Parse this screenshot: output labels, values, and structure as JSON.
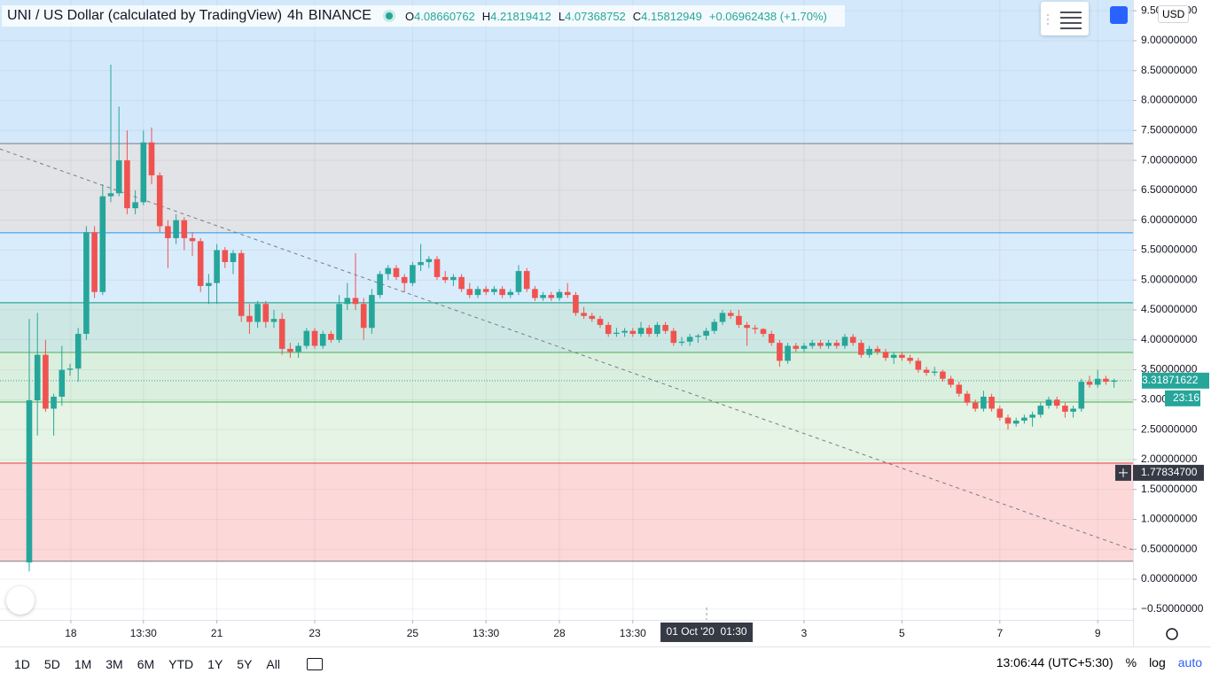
{
  "header": {
    "title": "UNI / US Dollar (calculated by TradingView)",
    "interval": "4h",
    "exchange": "BINANCE",
    "open_label": "O",
    "open": "4.08660762",
    "high_label": "H",
    "high": "4.21819412",
    "low_label": "L",
    "low": "4.07368752",
    "close_label": "C",
    "close": "4.15812949",
    "change": "+0.06962438 (+1.70%)"
  },
  "currency": "USD",
  "chart_data": {
    "type": "candlestick",
    "up_color": "#26a69a",
    "down_color": "#ef5350",
    "xlim": [
      -3.587,
      135.326
    ],
    "ylim": [
      -0.68,
      9.68
    ],
    "yticks": [
      {
        "value": 9.5,
        "label": "9.50000000"
      },
      {
        "value": 9,
        "label": "9.00000000"
      },
      {
        "value": 8.5,
        "label": "8.50000000"
      },
      {
        "value": 8,
        "label": "8.00000000"
      },
      {
        "value": 7.5,
        "label": "7.50000000"
      },
      {
        "value": 7,
        "label": "7.00000000"
      },
      {
        "value": 6.5,
        "label": "6.50000000"
      },
      {
        "value": 6,
        "label": "6.00000000"
      },
      {
        "value": 5.5,
        "label": "5.50000000"
      },
      {
        "value": 5,
        "label": "5.00000000"
      },
      {
        "value": 4.5,
        "label": "4.50000000"
      },
      {
        "value": 4,
        "label": "4.00000000"
      },
      {
        "value": 3.5,
        "label": "3.50000000"
      },
      {
        "value": 3,
        "label": "3.00000000"
      },
      {
        "value": 2.5,
        "label": "2.50000000"
      },
      {
        "value": 2,
        "label": "2.00000000"
      },
      {
        "value": 1.5,
        "label": "1.50000000"
      },
      {
        "value": 1,
        "label": "1.00000000"
      },
      {
        "value": 0.5,
        "label": "0.50000000"
      },
      {
        "value": 0,
        "label": "0.00000000"
      },
      {
        "value": -0.5,
        "label": "−0.50000000"
      }
    ],
    "xticks": [
      {
        "value": 5.1,
        "label": "18"
      },
      {
        "value": 14,
        "label": "13:30"
      },
      {
        "value": 23,
        "label": "21"
      },
      {
        "value": 35,
        "label": "23"
      },
      {
        "value": 47,
        "label": "25"
      },
      {
        "value": 56,
        "label": "13:30"
      },
      {
        "value": 65,
        "label": "28"
      },
      {
        "value": 74,
        "label": "13:30"
      },
      {
        "value": 95,
        "label": "3"
      },
      {
        "value": 107,
        "label": "5"
      },
      {
        "value": 119,
        "label": "7"
      },
      {
        "value": 131,
        "label": "9"
      }
    ],
    "grid": true,
    "levels": [
      7.28,
      5.79,
      4.62,
      3.79,
      2.96,
      1.94,
      0.3
    ],
    "level_colors": [
      "#787b86",
      "#2196f3",
      "#089981",
      "#4caf50",
      "#4caf50",
      "#f23645",
      "#787b86"
    ],
    "zone_colors": [
      "#d3e9fb",
      "#e2e3e6",
      "#d9ecfb",
      "#cde8e4",
      "#dbefdf",
      "#e5f4e4",
      "#fdd8d9",
      "#ffffff"
    ],
    "trendline": [
      {
        "x": -3.6,
        "y": 7.19
      },
      {
        "x": 135.3,
        "y": 0.49
      }
    ],
    "last_price": 3.31871622,
    "countdown": "23:16",
    "crosshair": {
      "x": {
        "value": 83.05,
        "label": "01 Oct '20  01:30"
      },
      "y": {
        "value": 1.778347,
        "label": "1.77834700"
      }
    },
    "candles": [
      [
        0.28,
        4.35,
        0.13,
        2.99
      ],
      [
        2.99,
        4.45,
        2.4,
        3.75
      ],
      [
        3.75,
        4.0,
        2.8,
        2.85
      ],
      [
        2.85,
        3.1,
        2.4,
        3.05
      ],
      [
        3.05,
        3.9,
        2.9,
        3.5
      ],
      [
        3.5,
        3.6,
        3.4,
        3.52
      ],
      [
        3.52,
        4.2,
        3.3,
        4.1
      ],
      [
        4.1,
        5.9,
        4.0,
        5.8
      ],
      [
        5.8,
        5.9,
        4.7,
        4.8
      ],
      [
        4.8,
        6.6,
        4.75,
        6.4
      ],
      [
        6.4,
        8.6,
        6.3,
        6.45
      ],
      [
        6.45,
        7.9,
        6.4,
        7.0
      ],
      [
        7.0,
        7.5,
        6.1,
        6.2
      ],
      [
        6.2,
        6.5,
        6.1,
        6.3
      ],
      [
        6.3,
        7.5,
        6.25,
        7.3
      ],
      [
        7.3,
        7.55,
        6.6,
        6.75
      ],
      [
        6.75,
        6.8,
        5.8,
        5.9
      ],
      [
        5.9,
        6.0,
        5.2,
        5.7
      ],
      [
        5.7,
        6.1,
        5.6,
        6.0
      ],
      [
        6.0,
        6.05,
        5.5,
        5.7
      ],
      [
        5.7,
        5.8,
        5.4,
        5.65
      ],
      [
        5.65,
        5.7,
        4.8,
        4.9
      ],
      [
        4.9,
        5.1,
        4.6,
        4.95
      ],
      [
        4.95,
        5.6,
        4.6,
        5.5
      ],
      [
        5.5,
        5.55,
        5.2,
        5.3
      ],
      [
        5.3,
        5.5,
        5.1,
        5.45
      ],
      [
        5.45,
        5.5,
        4.3,
        4.4
      ],
      [
        4.4,
        4.6,
        4.1,
        4.3
      ],
      [
        4.3,
        4.65,
        4.2,
        4.6
      ],
      [
        4.6,
        4.65,
        4.2,
        4.3
      ],
      [
        4.3,
        4.5,
        4.2,
        4.35
      ],
      [
        4.35,
        4.45,
        3.75,
        3.85
      ],
      [
        3.85,
        3.95,
        3.7,
        3.8
      ],
      [
        3.8,
        3.95,
        3.7,
        3.9
      ],
      [
        3.9,
        4.2,
        3.85,
        4.15
      ],
      [
        4.15,
        4.2,
        3.85,
        3.9
      ],
      [
        3.9,
        4.15,
        3.85,
        4.1
      ],
      [
        4.1,
        4.15,
        3.95,
        4.0
      ],
      [
        4.0,
        4.75,
        3.95,
        4.6
      ],
      [
        4.6,
        4.95,
        4.5,
        4.7
      ],
      [
        4.7,
        5.45,
        4.5,
        4.6
      ],
      [
        4.6,
        4.7,
        4.0,
        4.2
      ],
      [
        4.2,
        4.85,
        4.1,
        4.75
      ],
      [
        4.75,
        5.15,
        4.7,
        5.1
      ],
      [
        5.1,
        5.25,
        5.0,
        5.2
      ],
      [
        5.2,
        5.25,
        5.0,
        5.05
      ],
      [
        5.05,
        5.1,
        4.8,
        4.95
      ],
      [
        4.95,
        5.3,
        4.9,
        5.25
      ],
      [
        5.25,
        5.6,
        5.15,
        5.3
      ],
      [
        5.3,
        5.4,
        5.2,
        5.35
      ],
      [
        5.35,
        5.4,
        5.0,
        5.05
      ],
      [
        5.05,
        5.15,
        4.95,
        5.0
      ],
      [
        5.0,
        5.1,
        4.9,
        5.05
      ],
      [
        5.05,
        5.1,
        4.8,
        4.85
      ],
      [
        4.85,
        4.95,
        4.7,
        4.75
      ],
      [
        4.75,
        4.9,
        4.7,
        4.85
      ],
      [
        4.85,
        4.9,
        4.75,
        4.8
      ],
      [
        4.8,
        4.9,
        4.75,
        4.85
      ],
      [
        4.85,
        4.9,
        4.7,
        4.75
      ],
      [
        4.75,
        4.85,
        4.7,
        4.8
      ],
      [
        4.8,
        5.25,
        4.75,
        5.15
      ],
      [
        5.15,
        5.2,
        4.8,
        4.85
      ],
      [
        4.85,
        4.9,
        4.65,
        4.7
      ],
      [
        4.7,
        4.8,
        4.65,
        4.75
      ],
      [
        4.75,
        4.8,
        4.65,
        4.7
      ],
      [
        4.7,
        4.85,
        4.65,
        4.8
      ],
      [
        4.8,
        4.95,
        4.7,
        4.75
      ],
      [
        4.75,
        4.8,
        4.4,
        4.45
      ],
      [
        4.45,
        4.55,
        4.35,
        4.4
      ],
      [
        4.4,
        4.45,
        4.3,
        4.35
      ],
      [
        4.35,
        4.4,
        4.2,
        4.25
      ],
      [
        4.25,
        4.3,
        4.05,
        4.1
      ],
      [
        4.1,
        4.2,
        4.05,
        4.12
      ],
      [
        4.12,
        4.2,
        4.05,
        4.15
      ],
      [
        4.15,
        4.2,
        4.05,
        4.1
      ],
      [
        4.1,
        4.3,
        4.05,
        4.2
      ],
      [
        4.2,
        4.25,
        4.05,
        4.1
      ],
      [
        4.1,
        4.3,
        4.05,
        4.25
      ],
      [
        4.25,
        4.3,
        4.1,
        4.15
      ],
      [
        4.15,
        4.2,
        3.9,
        3.95
      ],
      [
        3.95,
        4.05,
        3.9,
        3.97
      ],
      [
        3.97,
        4.1,
        3.9,
        4.05
      ],
      [
        4.05,
        4.1,
        3.95,
        4.07
      ],
      [
        4.07,
        4.2,
        4.0,
        4.15
      ],
      [
        4.15,
        4.35,
        4.1,
        4.3
      ],
      [
        4.3,
        4.5,
        4.25,
        4.45
      ],
      [
        4.45,
        4.5,
        4.35,
        4.4
      ],
      [
        4.4,
        4.5,
        4.2,
        4.25
      ],
      [
        4.25,
        4.3,
        3.9,
        4.2
      ],
      [
        4.2,
        4.25,
        4.1,
        4.18
      ],
      [
        4.18,
        4.2,
        4.05,
        4.1
      ],
      [
        4.1,
        4.15,
        3.9,
        3.95
      ],
      [
        3.95,
        4.0,
        3.55,
        3.65
      ],
      [
        3.65,
        3.95,
        3.6,
        3.9
      ],
      [
        3.9,
        3.95,
        3.8,
        3.85
      ],
      [
        3.85,
        3.95,
        3.8,
        3.9
      ],
      [
        3.9,
        4.0,
        3.85,
        3.95
      ],
      [
        3.95,
        4.0,
        3.85,
        3.9
      ],
      [
        3.9,
        4.0,
        3.85,
        3.95
      ],
      [
        3.95,
        4.0,
        3.85,
        3.9
      ],
      [
        3.9,
        4.1,
        3.85,
        4.05
      ],
      [
        4.05,
        4.1,
        3.9,
        3.95
      ],
      [
        3.95,
        4.0,
        3.7,
        3.75
      ],
      [
        3.75,
        3.9,
        3.7,
        3.85
      ],
      [
        3.85,
        3.9,
        3.75,
        3.8
      ],
      [
        3.8,
        3.85,
        3.65,
        3.7
      ],
      [
        3.7,
        3.8,
        3.6,
        3.75
      ],
      [
        3.75,
        3.8,
        3.65,
        3.7
      ],
      [
        3.7,
        3.75,
        3.6,
        3.65
      ],
      [
        3.65,
        3.7,
        3.45,
        3.5
      ],
      [
        3.5,
        3.55,
        3.4,
        3.45
      ],
      [
        3.45,
        3.55,
        3.4,
        3.47
      ],
      [
        3.47,
        3.5,
        3.3,
        3.35
      ],
      [
        3.35,
        3.4,
        3.2,
        3.25
      ],
      [
        3.25,
        3.3,
        3.05,
        3.1
      ],
      [
        3.1,
        3.15,
        2.9,
        2.95
      ],
      [
        2.95,
        3.0,
        2.8,
        2.85
      ],
      [
        2.85,
        3.15,
        2.8,
        3.05
      ],
      [
        3.05,
        3.1,
        2.8,
        2.85
      ],
      [
        2.85,
        2.9,
        2.65,
        2.7
      ],
      [
        2.7,
        2.75,
        2.5,
        2.6
      ],
      [
        2.6,
        2.7,
        2.55,
        2.65
      ],
      [
        2.65,
        2.75,
        2.6,
        2.7
      ],
      [
        2.7,
        2.8,
        2.55,
        2.75
      ],
      [
        2.75,
        2.95,
        2.7,
        2.9
      ],
      [
        2.9,
        3.05,
        2.85,
        3.0
      ],
      [
        3.0,
        3.05,
        2.85,
        2.9
      ],
      [
        2.9,
        2.95,
        2.7,
        2.8
      ],
      [
        2.8,
        2.9,
        2.7,
        2.85
      ],
      [
        2.85,
        3.35,
        2.8,
        3.3
      ],
      [
        3.3,
        3.4,
        3.2,
        3.25
      ],
      [
        3.25,
        3.5,
        3.2,
        3.35
      ],
      [
        3.35,
        3.4,
        3.25,
        3.3
      ],
      [
        3.3,
        3.35,
        3.2,
        3.32
      ]
    ]
  },
  "toolbar": {
    "ranges": [
      "1D",
      "5D",
      "1M",
      "3M",
      "6M",
      "YTD",
      "1Y",
      "5Y",
      "All"
    ],
    "time": "13:06:44 (UTC+5:30)",
    "percent": "%",
    "log": "log",
    "auto": "auto"
  }
}
